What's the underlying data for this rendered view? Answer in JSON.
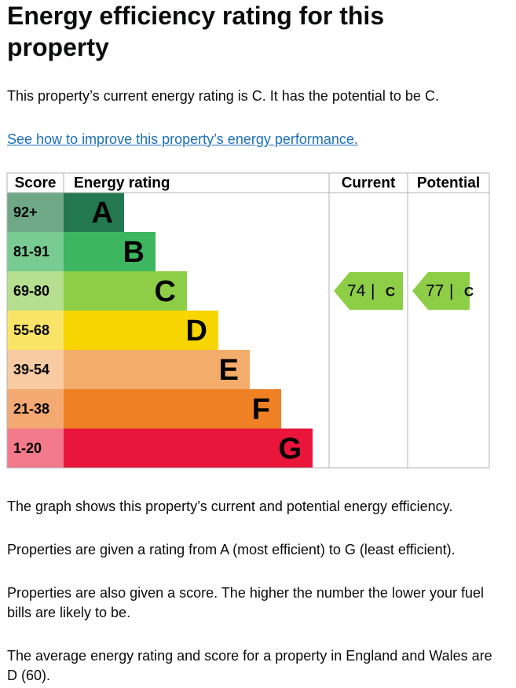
{
  "title": "Energy efficiency rating for this property",
  "summary": "This property’s current energy rating is C. It has the potential to be C.",
  "link": "See how to improve this property’s energy performance.",
  "table": {
    "headers": [
      "Score",
      "Energy rating",
      "Current",
      "Potential"
    ],
    "bands": [
      {
        "score": "92+",
        "rating": "A",
        "bar_color": "#23784f",
        "score_color": "#6fa887"
      },
      {
        "score": "81-91",
        "rating": "B",
        "bar_color": "#3cb75f",
        "score_color": "#78cb92"
      },
      {
        "score": "69-80",
        "rating": "C",
        "bar_color": "#8dce46",
        "score_color": "#b6df8f"
      },
      {
        "score": "55-68",
        "rating": "D",
        "bar_color": "#f6d500",
        "score_color": "#f9e467"
      },
      {
        "score": "39-54",
        "rating": "E",
        "bar_color": "#f4ac6a",
        "score_color": "#f8cba2"
      },
      {
        "score": "21-38",
        "rating": "F",
        "bar_color": "#ef8124",
        "score_color": "#f4a972"
      },
      {
        "score": "1-20",
        "rating": "G",
        "bar_color": "#e9153b",
        "score_color": "#f27a8b"
      }
    ],
    "separator": "|",
    "current": {
      "score": 74,
      "rating": "C"
    },
    "potential": {
      "score": 77,
      "rating": "C"
    }
  },
  "paragraphs": [
    "The graph shows this property’s current and potential energy efficiency.",
    "Properties are given a rating from A (most efficient) to G (least efficient).",
    "Properties are also given a score. The higher the number the lower your fuel bills are likely to be.",
    "The average energy rating and score for a property in England and Wales are D (60)."
  ]
}
